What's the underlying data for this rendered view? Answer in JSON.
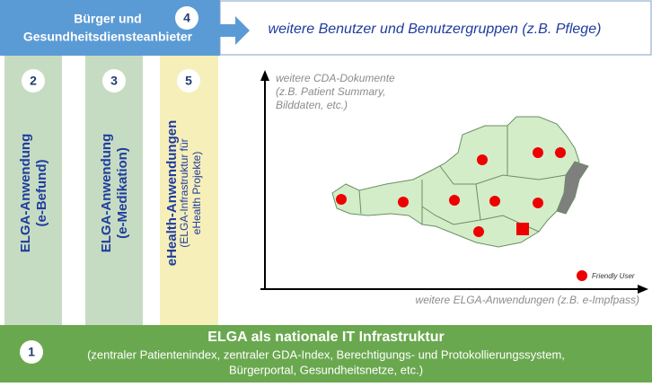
{
  "top_box": {
    "number": "4",
    "lines": [
      "Bürger und",
      "Gesundheitsdiensteanbieter"
    ]
  },
  "top_arrow_text": "weitere Benutzer und Benutzergruppen (z.B. Pflege)",
  "columns": [
    {
      "number": "2",
      "title": "ELGA-Anwendung",
      "subtitle": [
        "(e-Befund)"
      ]
    },
    {
      "number": "3",
      "title": "ELGA-Anwendung",
      "subtitle": [
        "(e-Medikation)"
      ]
    },
    {
      "number": "5",
      "title": "eHealth-Anwendungen",
      "subtitle": [
        "(ELGA-Infrastruktur für",
        "eHealth Projekte)"
      ]
    }
  ],
  "y_axis_label": [
    "weitere CDA-Dokumente",
    "(z.B. Patient Summary,",
    "Bilddaten, etc.)"
  ],
  "x_axis_label": "weitere ELGA-Anwendungen (z.B. e-Impfpass)",
  "legend": "Friendly User",
  "bottom_box": {
    "number": "1",
    "title": "ELGA als nationale IT Infrastruktur",
    "lines": [
      "(zentraler Patientenindex, zentraler GDA-Index, Berechtigungs- und Protokollierungssystem,",
      "Bürgerportal, Gesundheitsnetze, etc.)"
    ]
  }
}
